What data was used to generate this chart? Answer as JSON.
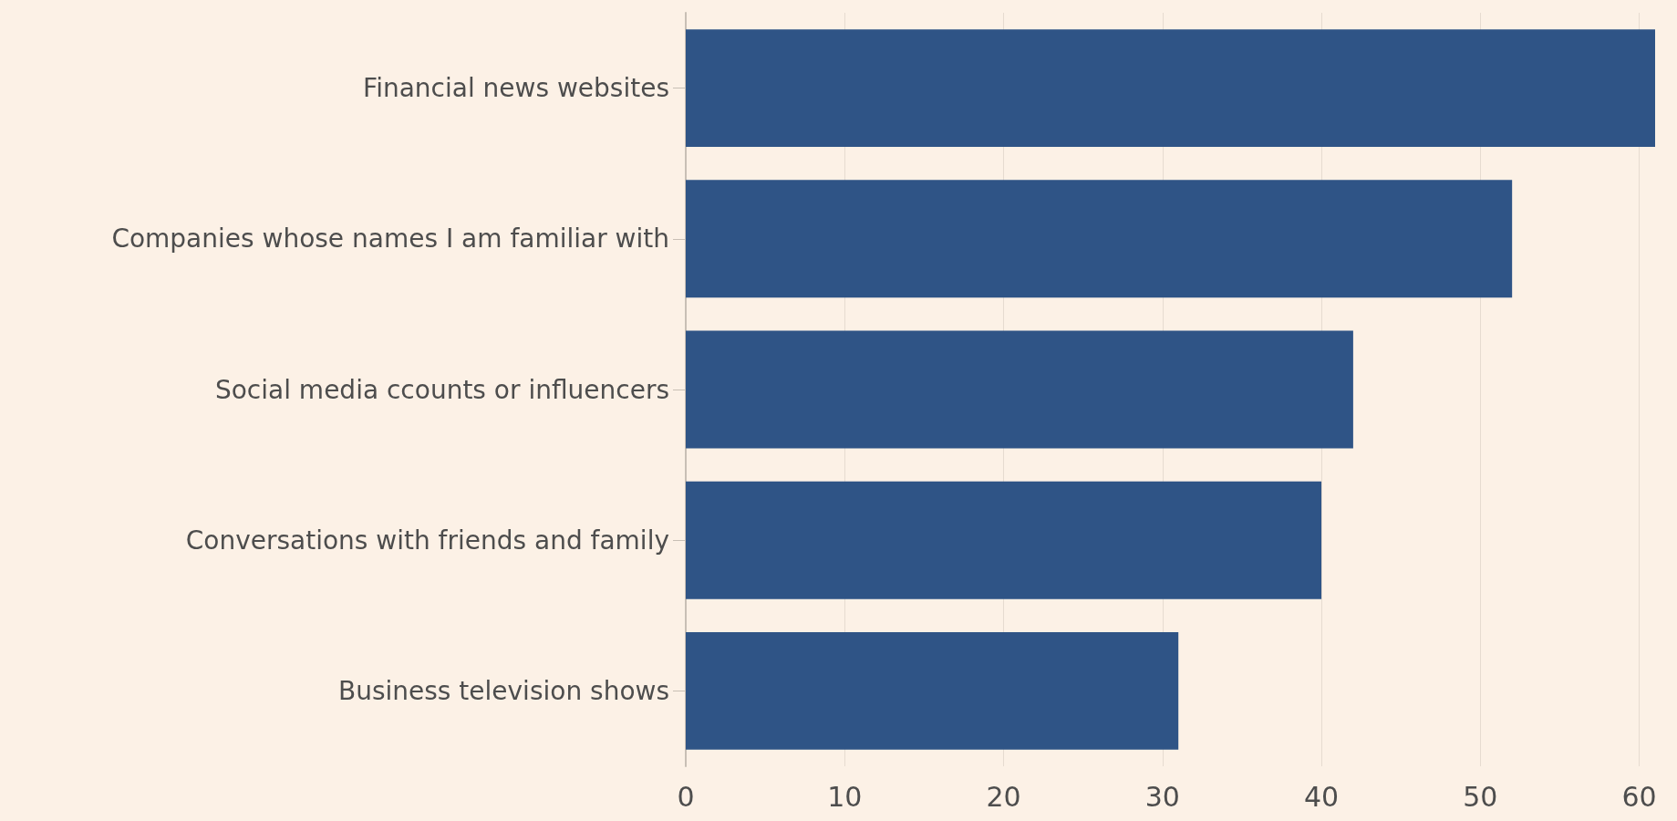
{
  "chart_data": {
    "type": "bar",
    "orientation": "horizontal",
    "categories": [
      "Financial news websites",
      "Companies whose names I am familiar with",
      "Social media ccounts or influencers",
      "Conversations with friends and family",
      "Business television shows"
    ],
    "values": [
      61,
      52,
      42,
      40,
      31
    ],
    "color": "#2f5486",
    "xlim": [
      0,
      61
    ],
    "xticks": [
      0,
      10,
      20,
      30,
      40,
      50,
      60
    ],
    "grid": "x"
  }
}
